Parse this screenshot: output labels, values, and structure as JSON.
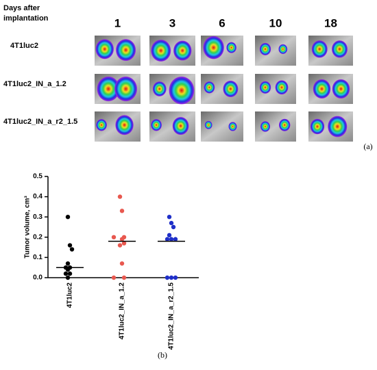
{
  "panel_a": {
    "header": [
      "Days after",
      "implantation"
    ],
    "days": [
      "1",
      "3",
      "6",
      "10",
      "18"
    ],
    "rows": [
      "4T1luc2",
      "4T1luc2_IN_a_1.2",
      "4T1luc2_IN_a_r2_1.5"
    ],
    "label": "(a)"
  },
  "chart_data": {
    "type": "dot",
    "ylabel": "Tumor volume, cm³",
    "categories": [
      "4T1luc2",
      "4T1luc2_IN_a_1.2",
      "4T1luc2_IN_a_r2_1.5"
    ],
    "groups": [
      {
        "color": "#000000",
        "values": [
          0.3,
          0.16,
          0.14,
          0.07,
          0.05,
          0.05,
          0.04,
          0.02,
          0.02,
          0.0
        ],
        "median": 0.05
      },
      {
        "color": "#e8584f",
        "values": [
          0.4,
          0.33,
          0.2,
          0.2,
          0.19,
          0.17,
          0.16,
          0.07,
          0.0,
          0.0
        ],
        "median": 0.18
      },
      {
        "color": "#1f2fc8",
        "values": [
          0.3,
          0.27,
          0.25,
          0.21,
          0.19,
          0.19,
          0.19,
          0.0,
          0.0,
          0.0
        ],
        "median": 0.18
      }
    ],
    "ylim": [
      0,
      0.5
    ],
    "yticks": [
      {
        "value": 0,
        "label": "0.0"
      },
      0.1,
      0.2,
      0.3,
      0.4,
      0.5
    ],
    "label": "(b)"
  }
}
